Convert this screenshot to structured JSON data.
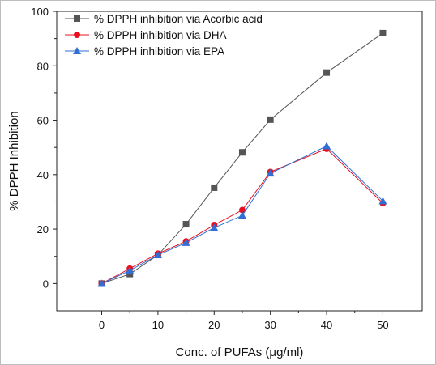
{
  "chart_data": {
    "type": "line",
    "x": [
      0,
      5,
      10,
      15,
      20,
      25,
      30,
      40,
      50
    ],
    "xlabel": "Conc. of PUFAs (μg/ml)",
    "ylabel": "% DPPH Inhibition",
    "xlim": [
      -8,
      57
    ],
    "ylim": [
      -10,
      100
    ],
    "x_ticks": [
      0,
      10,
      20,
      30,
      40,
      50
    ],
    "y_ticks": [
      0,
      20,
      40,
      60,
      80,
      100
    ],
    "x_tick_labels": [
      "0",
      "10",
      "20",
      "30",
      "40",
      "50"
    ],
    "y_tick_labels": [
      "0",
      "20",
      "40",
      "60",
      "80",
      "100"
    ],
    "grid": false,
    "legend_position": "top-left",
    "series": [
      {
        "name": "% DPPH inhibition via Acorbic acid",
        "marker": "square",
        "color": "#555555",
        "values": [
          0,
          3.5,
          10.5,
          21.8,
          35.2,
          48.2,
          60.2,
          77.5,
          92.0
        ]
      },
      {
        "name": "% DPPH inhibition via DHA",
        "marker": "circle",
        "color": "#e8101e",
        "values": [
          0,
          5.5,
          11.0,
          15.5,
          21.5,
          27.0,
          41.0,
          49.5,
          29.5
        ]
      },
      {
        "name": "% DPPH inhibition via EPA",
        "marker": "triangle",
        "color": "#2f6fd6",
        "values": [
          0,
          4.8,
          10.5,
          15.0,
          20.5,
          25.0,
          40.5,
          50.5,
          30.3
        ]
      }
    ]
  }
}
